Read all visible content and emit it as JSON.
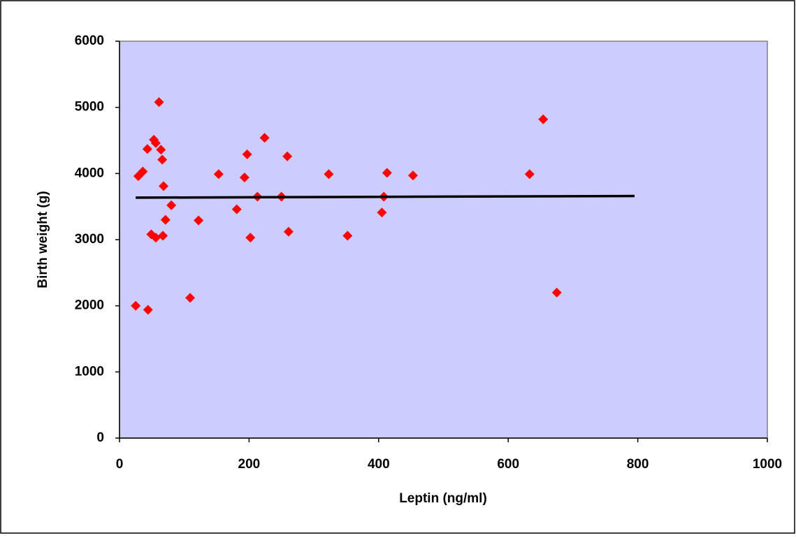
{
  "chart_data": {
    "type": "scatter",
    "xlabel": "Leptin (ng/ml)",
    "ylabel": "Birth weight (g)",
    "xlim": [
      0,
      1000
    ],
    "xticks": [
      0,
      200,
      400,
      600,
      800,
      1000
    ],
    "ylim": [
      0,
      6000
    ],
    "yticks": [
      0,
      1000,
      2000,
      3000,
      4000,
      5000,
      6000
    ],
    "background": "#ccccff",
    "series": [
      {
        "color": "#ff0000",
        "x": [
          25,
          29,
          36,
          44,
          43,
          49,
          53,
          56,
          56,
          61,
          64,
          66,
          67,
          68,
          71,
          80,
          109,
          122,
          153,
          181,
          193,
          197,
          202,
          213,
          224,
          250,
          259,
          261,
          323,
          352,
          405,
          413,
          408,
          453,
          633,
          654,
          675
        ],
        "values": [
          2000,
          3960,
          4030,
          1940,
          4370,
          3080,
          4510,
          4460,
          3030,
          5080,
          4360,
          4210,
          3060,
          3810,
          3300,
          3520,
          2120,
          3290,
          3990,
          3460,
          3940,
          4290,
          3030,
          3650,
          4540,
          3650,
          4260,
          3120,
          3990,
          3060,
          3410,
          4010,
          3650,
          3970,
          3990,
          4820,
          2200
        ]
      }
    ],
    "trendline": {
      "color": "#000000",
      "x": [
        25,
        795
      ],
      "values": [
        3635,
        3660
      ]
    }
  }
}
